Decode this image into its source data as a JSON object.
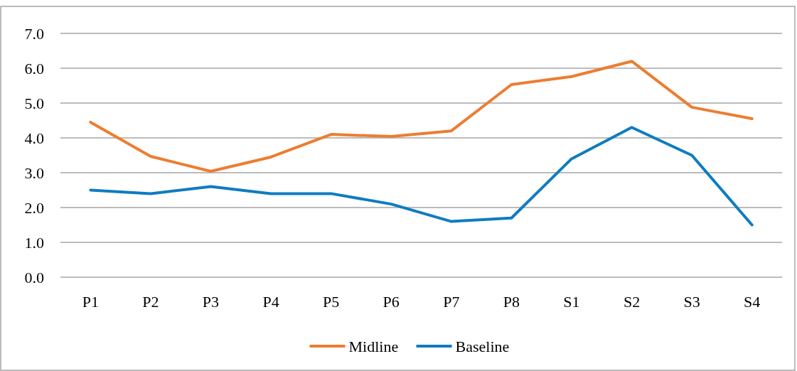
{
  "chart_data": {
    "type": "line",
    "categories": [
      "P1",
      "P2",
      "P3",
      "P4",
      "P5",
      "P6",
      "P7",
      "P8",
      "S1",
      "S2",
      "S3",
      "S4"
    ],
    "series": [
      {
        "name": "Midline",
        "color": "#ed7d31",
        "values": [
          4.45,
          3.47,
          3.04,
          3.45,
          4.1,
          4.04,
          4.2,
          5.53,
          5.76,
          6.2,
          4.88,
          4.55
        ]
      },
      {
        "name": "Baseline",
        "color": "#0f7cc0",
        "values": [
          2.5,
          2.4,
          2.6,
          2.4,
          2.4,
          2.1,
          1.6,
          1.7,
          3.4,
          4.3,
          3.5,
          1.5
        ]
      }
    ],
    "ylim": [
      0,
      7
    ],
    "yticks": [
      {
        "value": 0,
        "label": "0.0"
      },
      {
        "value": 1,
        "label": "1.0"
      },
      {
        "value": 2,
        "label": "2.0"
      },
      {
        "value": 3,
        "label": "3.0"
      },
      {
        "value": 4,
        "label": "4.0"
      },
      {
        "value": 5,
        "label": "5.0"
      },
      {
        "value": 6,
        "label": "6.0"
      },
      {
        "value": 7,
        "label": "7.0"
      }
    ],
    "grid": "y",
    "legend": "bottom",
    "line_style": "solid",
    "marker": "none"
  }
}
